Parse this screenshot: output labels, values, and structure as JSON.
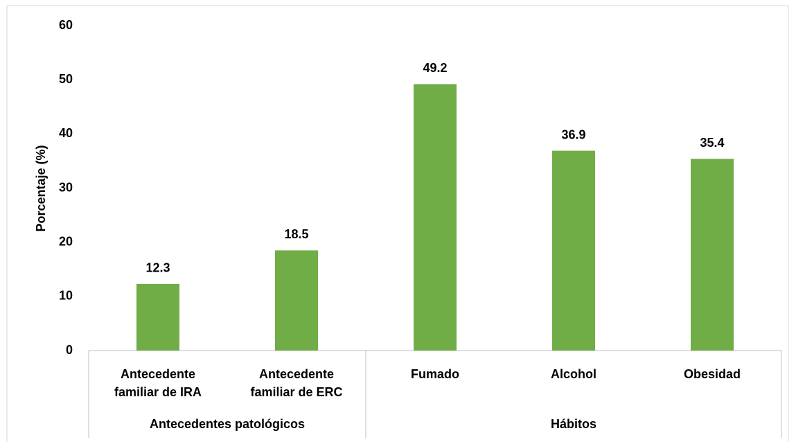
{
  "chart_data": {
    "type": "bar",
    "y_axis_label": "Porcentaje (%)",
    "categories": [
      "Antecedente familiar de IRA",
      "Antecedente familiar de ERC",
      "Fumado",
      "Alcohol",
      "Obesidad"
    ],
    "category_groups": [
      "Antecedentes patológicos",
      "Antecedentes patológicos",
      "Hábitos",
      "Hábitos",
      "Hábitos"
    ],
    "values": [
      12.3,
      18.5,
      49.2,
      36.9,
      35.4
    ],
    "color": "#70ad47",
    "ylim": [
      0,
      60
    ],
    "yticks": [
      0,
      10,
      20,
      30,
      40,
      50,
      60
    ],
    "grid": false
  }
}
